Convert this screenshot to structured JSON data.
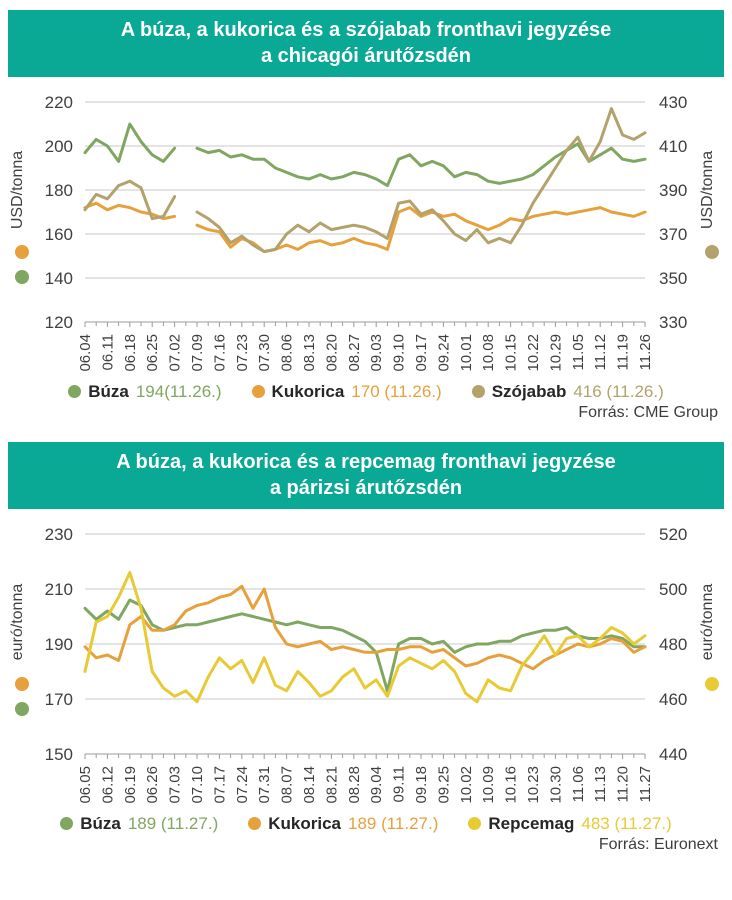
{
  "chart_data": [
    {
      "type": "line",
      "title": "A búza, a kukorica és a szójabab fronthavi jegyzése",
      "subtitle": "a chicagói árutőzsdén",
      "source": "Forrás: CME Group",
      "grid": true,
      "legend_position": "bottom",
      "left_axis": {
        "label": "USD/tonna",
        "min": 120,
        "max": 220,
        "step": 20
      },
      "right_axis": {
        "label": "USD/tonna",
        "min": 330,
        "max": 430,
        "step": 20
      },
      "x_tick_labels": [
        "06.04",
        "06.11",
        "06.18",
        "06.25",
        "07.02",
        "07.09",
        "07.16",
        "07.23",
        "07.30",
        "08.06",
        "08.13",
        "08.20",
        "08.27",
        "09.03",
        "09.10",
        "09.17",
        "09.24",
        "10.01",
        "10.08",
        "10.15",
        "10.22",
        "10.29",
        "11.05",
        "11.12",
        "11.19",
        "11.26"
      ],
      "series": [
        {
          "name": "Búza",
          "axis": "left",
          "color": "#7fa761",
          "legend_value": "194(11.26.)",
          "last_value": 194,
          "last_date": "11.26.",
          "values": [
            197,
            203,
            200,
            193,
            210,
            202,
            196,
            193,
            199,
            null,
            199,
            197,
            198,
            195,
            196,
            194,
            194,
            190,
            188,
            186,
            185,
            187,
            185,
            186,
            188,
            187,
            185,
            182,
            194,
            196,
            191,
            193,
            191,
            186,
            188,
            187,
            184,
            183,
            184,
            185,
            187,
            191,
            195,
            198,
            201,
            193,
            196,
            199,
            194,
            193,
            194
          ]
        },
        {
          "name": "Kukorica",
          "axis": "left",
          "color": "#e6a13c",
          "legend_value": "170 (11.26.)",
          "last_value": 170,
          "last_date": "11.26.",
          "values": [
            172,
            174,
            171,
            173,
            172,
            170,
            169,
            167,
            168,
            null,
            164,
            162,
            161,
            154,
            158,
            156,
            152,
            153,
            155,
            153,
            156,
            157,
            155,
            156,
            158,
            156,
            155,
            153,
            170,
            172,
            168,
            170,
            168,
            169,
            166,
            164,
            162,
            164,
            167,
            166,
            168,
            169,
            170,
            169,
            170,
            171,
            172,
            170,
            169,
            168,
            170
          ]
        },
        {
          "name": "Szójabab",
          "axis": "right",
          "color": "#b3a26b",
          "legend_value": "416 (11.26.)",
          "last_value": 416,
          "last_date": "11.26.",
          "values": [
            381,
            388,
            386,
            392,
            394,
            391,
            377,
            378,
            387,
            null,
            380,
            377,
            373,
            366,
            369,
            365,
            362,
            363,
            370,
            374,
            371,
            375,
            372,
            373,
            374,
            373,
            371,
            368,
            384,
            385,
            379,
            381,
            376,
            370,
            367,
            372,
            366,
            368,
            366,
            374,
            384,
            392,
            400,
            408,
            414,
            403,
            412,
            427,
            415,
            413,
            416
          ]
        }
      ]
    },
    {
      "type": "line",
      "title": "A búza, a kukorica és a repcemag fronthavi jegyzése",
      "subtitle": "a párizsi árutőzsdén",
      "source": "Forrás: Euronext",
      "grid": true,
      "legend_position": "bottom",
      "left_axis": {
        "label": "euró/tonna",
        "min": 150,
        "max": 230,
        "step": 20
      },
      "right_axis": {
        "label": "euró/tonna",
        "min": 440,
        "max": 520,
        "step": 20
      },
      "x_tick_labels": [
        "06.05",
        "06.12",
        "06.19",
        "06.26",
        "07.03",
        "07.10",
        "07.17",
        "07.24",
        "07.31",
        "08.07",
        "08.14",
        "08.21",
        "08.28",
        "09.04",
        "09.11",
        "09.18",
        "09.25",
        "10.02",
        "10.09",
        "10.16",
        "10.23",
        "10.30",
        "11.06",
        "11.13",
        "11.20",
        "11.27"
      ],
      "series": [
        {
          "name": "Búza",
          "axis": "left",
          "color": "#7fa761",
          "legend_value": "189 (11.27.)",
          "last_value": 189,
          "last_date": "11.27.",
          "values": [
            203,
            199,
            202,
            199,
            206,
            204,
            197,
            195,
            196,
            197,
            197,
            198,
            199,
            200,
            201,
            200,
            199,
            198,
            197,
            198,
            197,
            196,
            196,
            195,
            193,
            191,
            187,
            173,
            190,
            192,
            192,
            190,
            191,
            187,
            189,
            190,
            190,
            191,
            191,
            193,
            194,
            195,
            195,
            196,
            193,
            192,
            192,
            193,
            192,
            189,
            189
          ]
        },
        {
          "name": "Kukorica",
          "axis": "left",
          "color": "#e6a13c",
          "legend_value": "189 (11.27.)",
          "last_value": 189,
          "last_date": "11.27.",
          "values": [
            189,
            185,
            186,
            184,
            197,
            200,
            195,
            195,
            197,
            202,
            204,
            205,
            207,
            208,
            211,
            203,
            210,
            196,
            190,
            189,
            190,
            191,
            188,
            189,
            188,
            187,
            187,
            188,
            188,
            189,
            189,
            187,
            188,
            185,
            182,
            183,
            185,
            186,
            185,
            183,
            181,
            184,
            186,
            188,
            190,
            189,
            190,
            192,
            191,
            187,
            189
          ]
        },
        {
          "name": "Repcemag",
          "axis": "right",
          "color": "#e8ca35",
          "legend_value": "483 (11.27.)",
          "last_value": 483,
          "last_date": "11.27.",
          "values": [
            470,
            488,
            490,
            497,
            506,
            493,
            470,
            464,
            461,
            463,
            459,
            468,
            475,
            471,
            474,
            466,
            475,
            465,
            463,
            470,
            466,
            461,
            463,
            468,
            471,
            464,
            467,
            461,
            472,
            475,
            473,
            471,
            474,
            470,
            462,
            459,
            467,
            464,
            463,
            472,
            477,
            483,
            476,
            482,
            483,
            479,
            482,
            486,
            484,
            480,
            483
          ]
        }
      ]
    }
  ],
  "style": {
    "header_bg": "#0aa996",
    "grid_color": "#c9c9c9",
    "axis_color": "#9b9b9b",
    "tick_text_color": "#404040"
  }
}
